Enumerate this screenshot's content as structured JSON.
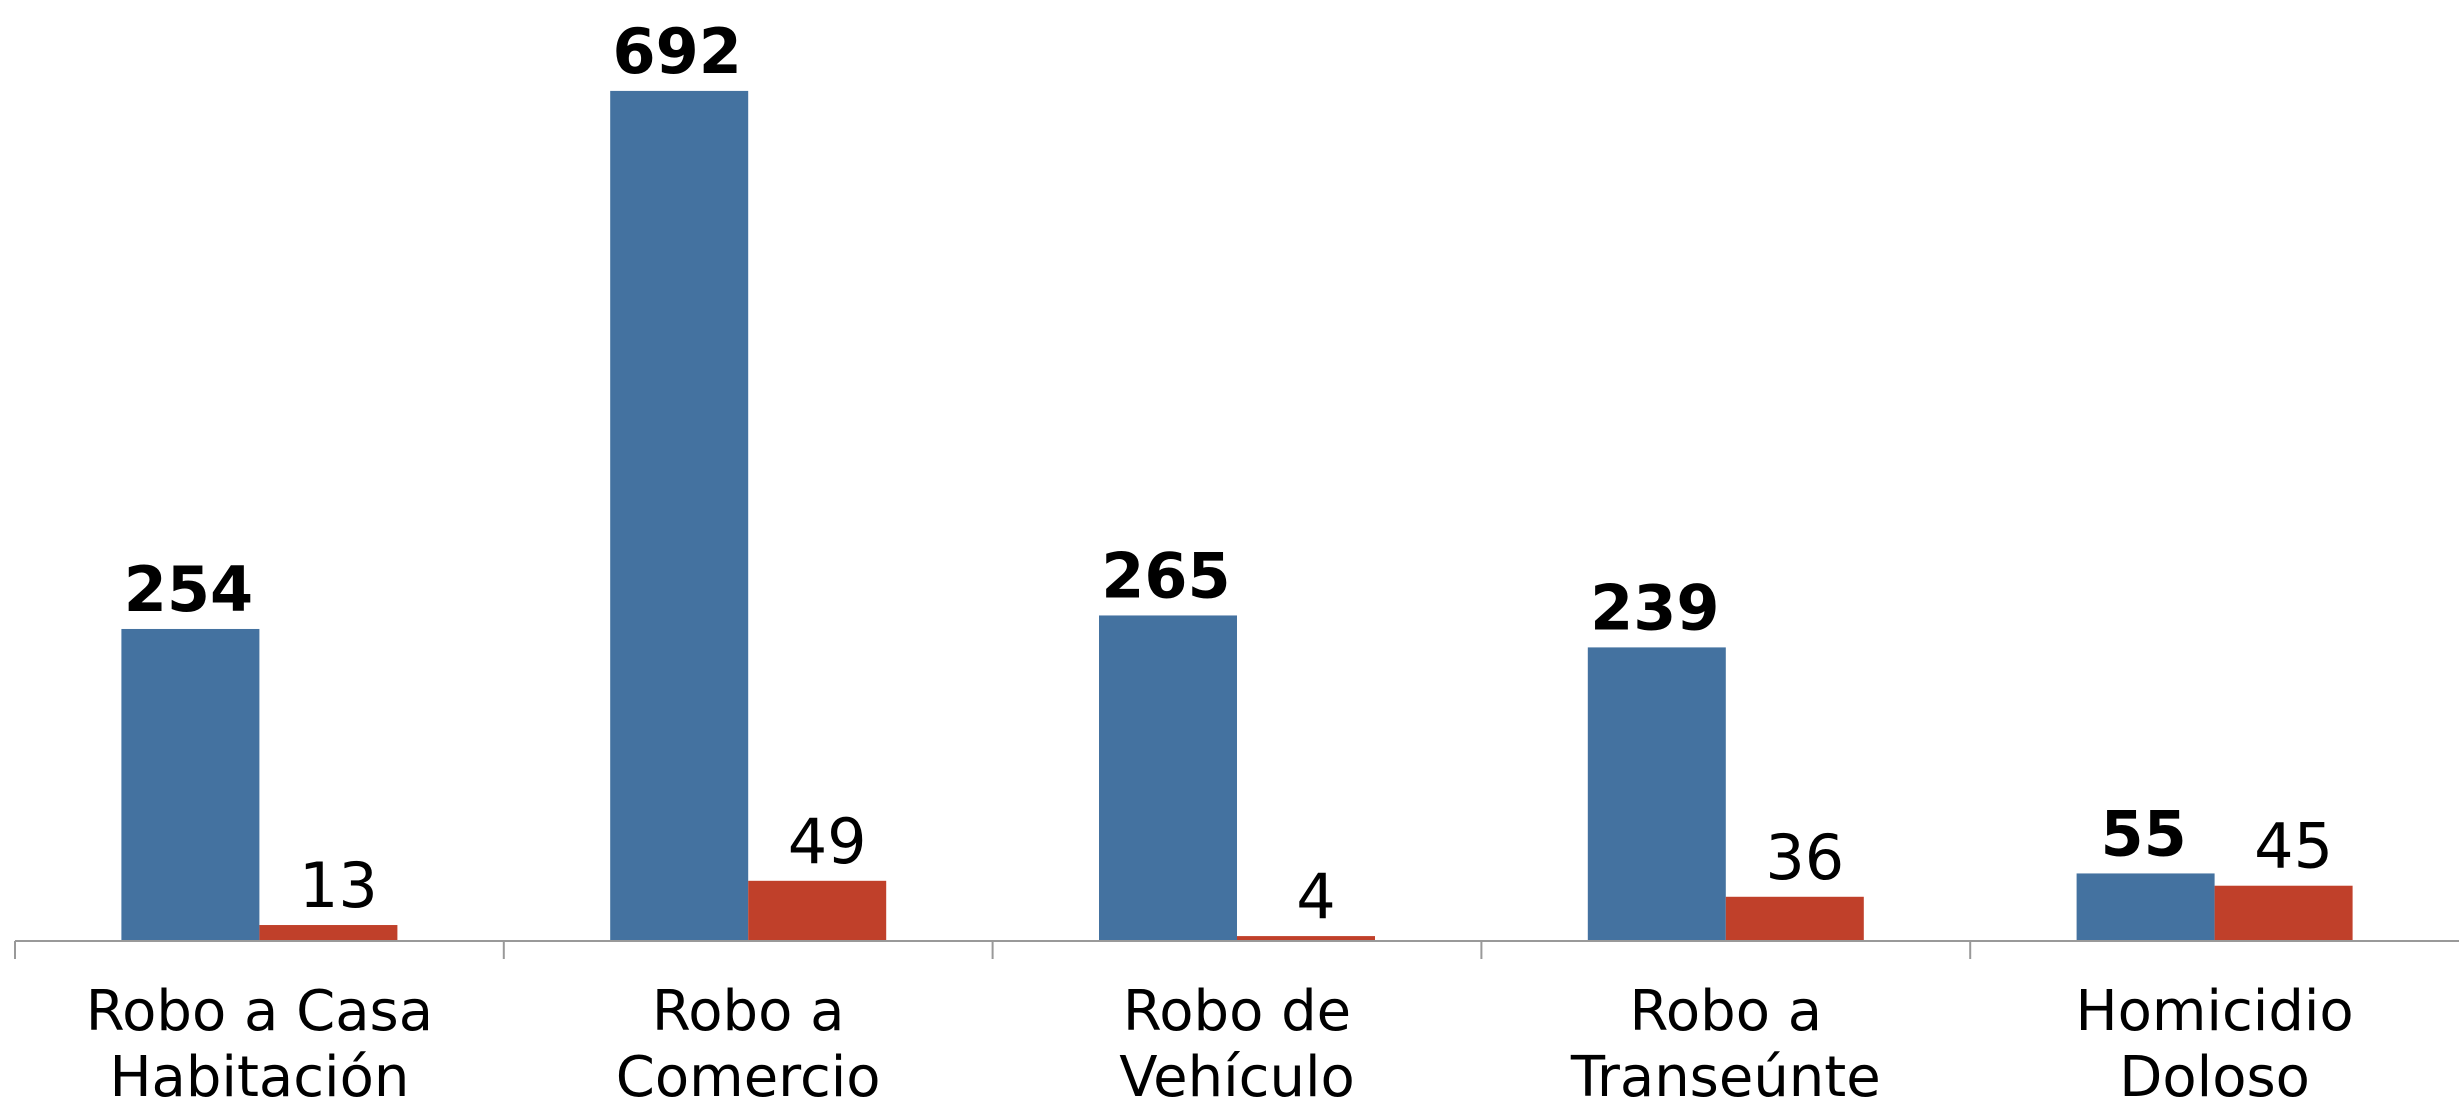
{
  "chart_data": {
    "type": "bar",
    "categories": [
      [
        "Robo a Casa",
        "Habitación"
      ],
      [
        "Robo a",
        "Comercio"
      ],
      [
        "Robo de",
        "Vehículo"
      ],
      [
        "Robo a",
        "Transeúnte"
      ],
      [
        "Homicidio",
        "Doloso"
      ]
    ],
    "series": [
      {
        "color": "#4472a0",
        "values": [
          254,
          692,
          265,
          239,
          55
        ]
      },
      {
        "color": "#c0402a",
        "values": [
          13,
          49,
          4,
          36,
          45
        ]
      }
    ],
    "ylim": [
      0,
      766
    ]
  }
}
